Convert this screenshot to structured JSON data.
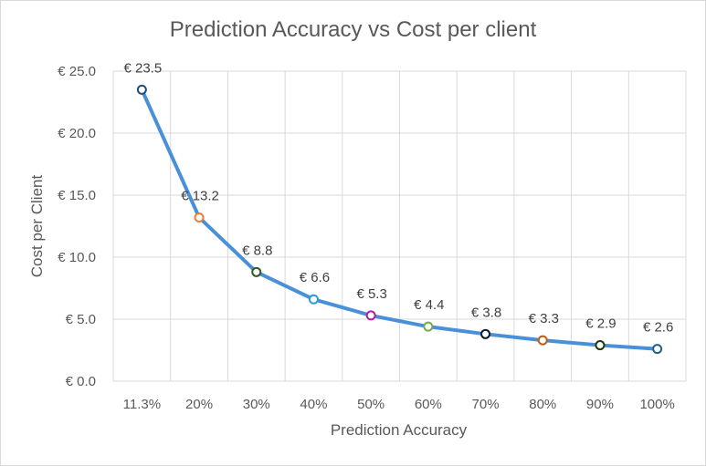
{
  "chart_data": {
    "type": "line",
    "title": "Prediction Accuracy vs Cost per client",
    "xlabel": "Prediction Accuracy",
    "ylabel": "Cost per Client",
    "categories": [
      "11.3%",
      "20%",
      "30%",
      "40%",
      "50%",
      "60%",
      "70%",
      "80%",
      "90%",
      "100%"
    ],
    "series": [
      {
        "values": [
          23.5,
          13.2,
          8.8,
          6.6,
          5.3,
          4.4,
          3.8,
          3.3,
          2.9,
          2.6
        ],
        "data_labels": [
          "€ 23.5",
          "€ 13.2",
          "€ 8.8",
          "€ 6.6",
          "€ 5.3",
          "€ 4.4",
          "€ 3.8",
          "€ 3.3",
          "€ 2.9",
          "€ 2.6"
        ],
        "line_color": "#4a90d9",
        "marker_colors": [
          "#1f4e79",
          "#ed7d31",
          "#375623",
          "#2e9bd6",
          "#b01fa0",
          "#70ad47",
          "#0d1b2a",
          "#c55a11",
          "#1f3b10",
          "#1f5f8b"
        ]
      }
    ],
    "yticks": [
      "€ 0.0",
      "€ 5.0",
      "€ 10.0",
      "€ 15.0",
      "€ 20.0",
      "€ 25.0"
    ],
    "ylim": [
      0,
      25
    ],
    "grid": true
  }
}
